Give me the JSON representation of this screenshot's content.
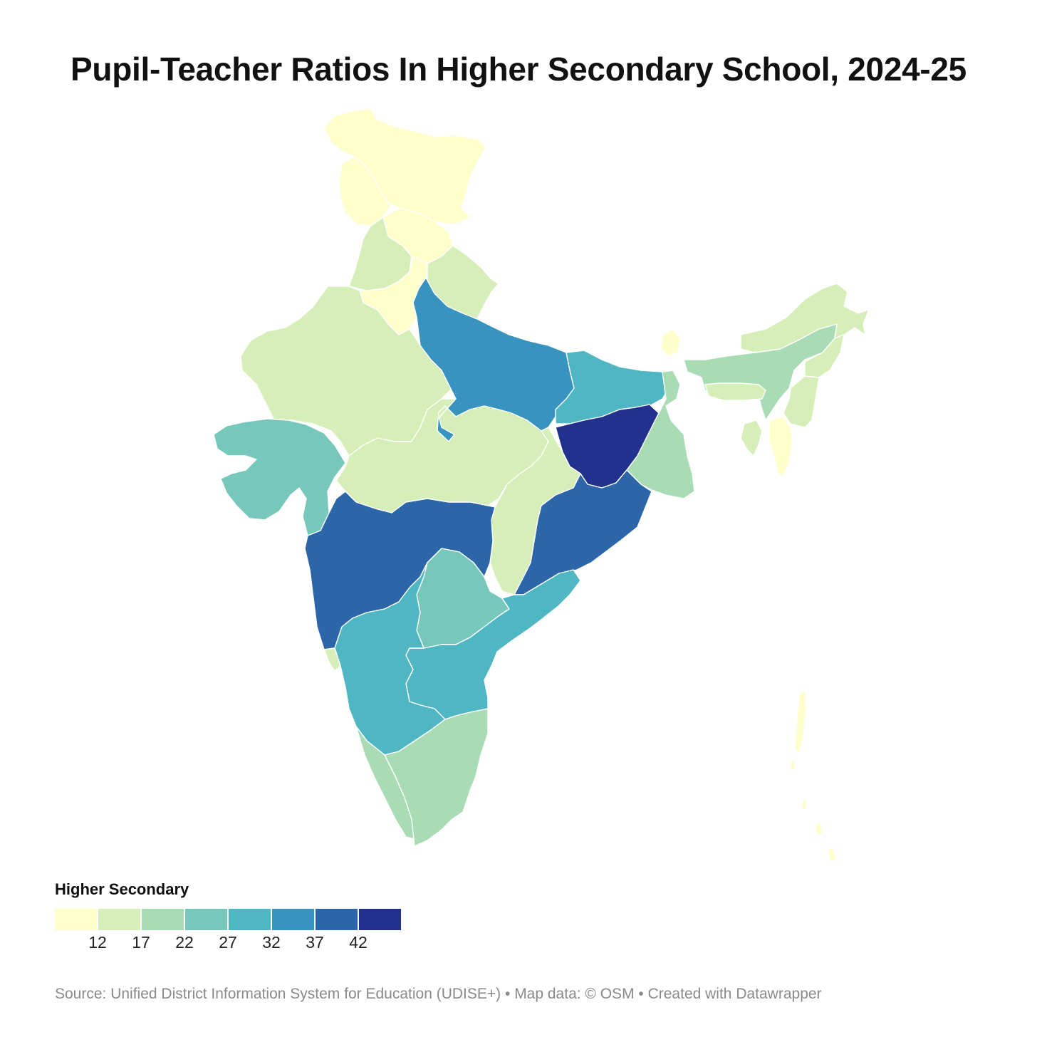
{
  "title": "Pupil-Teacher Ratios In Higher Secondary School, 2024-25",
  "legend": {
    "title": "Higher Secondary",
    "ticks": [
      "12",
      "17",
      "22",
      "27",
      "32",
      "37",
      "42"
    ],
    "colors": [
      "#ffffcc",
      "#d6efb9",
      "#a9dcb5",
      "#77c8bb",
      "#4fb6c4",
      "#3894be",
      "#2c66a9",
      "#22318e"
    ]
  },
  "footer": {
    "source": "Source: Unified District Information System for Education (UDISE+)",
    "separator1": " • ",
    "map_data": "Map data: © OSM",
    "separator2": "  • ",
    "created": "Created with Datawrapper"
  },
  "map": {
    "region_colors": {
      "jammu-kashmir": "#ffffcc",
      "ladakh": "#ffffcc",
      "himachal": "#ffffcc",
      "punjab": "#d6efb9",
      "haryana": "#ffffcc",
      "uttarakhand": "#d6efb9",
      "rajasthan": "#d6efb9",
      "uttar-pradesh": "#3894be",
      "bihar": "#4fb6c4",
      "jharkhand": "#22318e",
      "west-bengal": "#a9dcb5",
      "sikkim": "#ffffcc",
      "gujarat": "#77c8bb",
      "madhya-pradesh": "#d6efb9",
      "chhattisgarh": "#d6efb9",
      "odisha": "#2c66a9",
      "maharashtra": "#2c66a9",
      "telangana": "#77c8bb",
      "andhra-pradesh": "#4fb6c4",
      "karnataka": "#4fb6c4",
      "goa": "#d6efb9",
      "kerala": "#a9dcb5",
      "tamil-nadu": "#a9dcb5",
      "assam": "#a9dcb5",
      "arunachal": "#d6efb9",
      "meghalaya": "#d6efb9",
      "nagaland": "#d6efb9",
      "manipur": "#d6efb9",
      "tripura": "#d6efb9",
      "mizoram": "#ffffcc",
      "andaman-nicobar": "#ffffcc"
    }
  }
}
